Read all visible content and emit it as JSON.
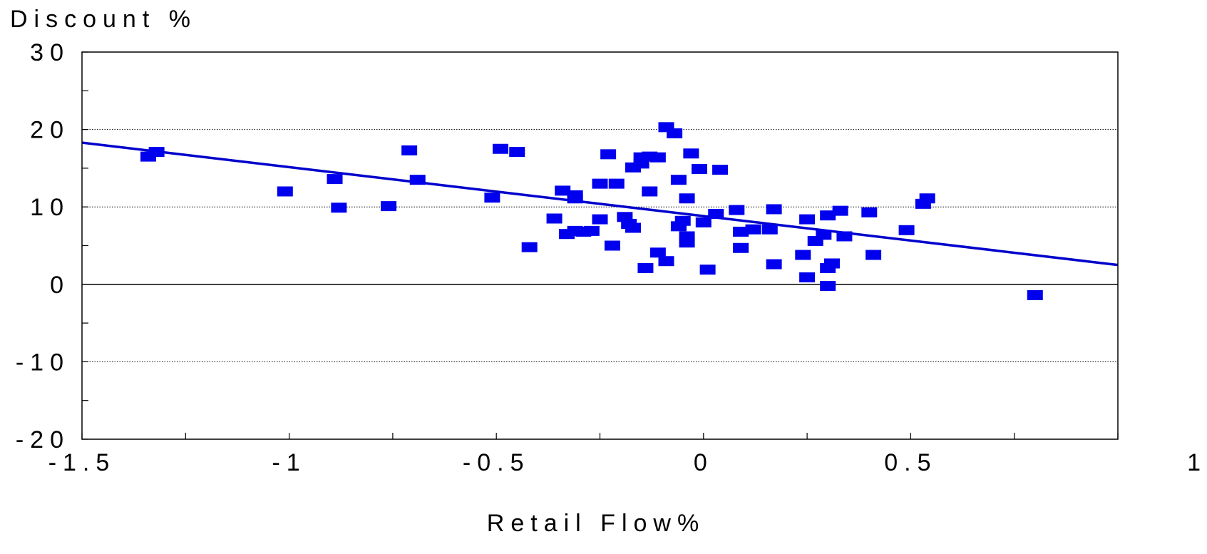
{
  "chart_data": {
    "type": "scatter",
    "ylabel": "Discount %",
    "xlabel": "Retail Flow%",
    "xlim": [
      -1.5,
      1
    ],
    "ylim": [
      -20,
      30
    ],
    "x_ticks": [
      -1.5,
      -1,
      -0.5,
      0,
      0.5,
      1
    ],
    "x_tick_labels": [
      "-1.5",
      "-1",
      "-0.5",
      "0",
      "0.5",
      "1"
    ],
    "y_ticks": [
      -20,
      -10,
      0,
      10,
      20,
      30
    ],
    "y_tick_labels": [
      "-20",
      "-10",
      "0",
      "10",
      "20",
      "30"
    ],
    "grid": "horizontal dotted at -10, 10, 20",
    "marker_color": "#0000ee",
    "trendline": {
      "x": [
        -1.5,
        1
      ],
      "y": [
        18.3,
        2.5
      ],
      "color": "#0000cc"
    },
    "points": [
      {
        "x": -1.34,
        "y": 16.5
      },
      {
        "x": -1.32,
        "y": 17.1
      },
      {
        "x": -1.01,
        "y": 12.0
      },
      {
        "x": -0.89,
        "y": 13.6
      },
      {
        "x": -0.88,
        "y": 9.9
      },
      {
        "x": -0.76,
        "y": 10.1
      },
      {
        "x": -0.71,
        "y": 17.3
      },
      {
        "x": -0.69,
        "y": 13.5
      },
      {
        "x": -0.51,
        "y": 11.2
      },
      {
        "x": -0.49,
        "y": 17.5
      },
      {
        "x": -0.45,
        "y": 17.1
      },
      {
        "x": -0.42,
        "y": 4.8
      },
      {
        "x": -0.36,
        "y": 8.5
      },
      {
        "x": -0.34,
        "y": 12.1
      },
      {
        "x": -0.33,
        "y": 6.5
      },
      {
        "x": -0.31,
        "y": 11.5
      },
      {
        "x": -0.31,
        "y": 11.1
      },
      {
        "x": -0.31,
        "y": 6.9
      },
      {
        "x": -0.29,
        "y": 6.8
      },
      {
        "x": -0.27,
        "y": 6.9
      },
      {
        "x": -0.25,
        "y": 13.0
      },
      {
        "x": -0.25,
        "y": 8.4
      },
      {
        "x": -0.23,
        "y": 16.8
      },
      {
        "x": -0.22,
        "y": 5.0
      },
      {
        "x": -0.21,
        "y": 13.0
      },
      {
        "x": -0.19,
        "y": 8.7
      },
      {
        "x": -0.18,
        "y": 7.8
      },
      {
        "x": -0.17,
        "y": 15.1
      },
      {
        "x": -0.17,
        "y": 7.3
      },
      {
        "x": -0.15,
        "y": 15.6
      },
      {
        "x": -0.15,
        "y": 16.4
      },
      {
        "x": -0.14,
        "y": 2.1
      },
      {
        "x": -0.13,
        "y": 16.5
      },
      {
        "x": -0.13,
        "y": 12.0
      },
      {
        "x": -0.11,
        "y": 16.4
      },
      {
        "x": -0.11,
        "y": 4.1
      },
      {
        "x": -0.09,
        "y": 20.3
      },
      {
        "x": -0.09,
        "y": 3.0
      },
      {
        "x": -0.07,
        "y": 19.5
      },
      {
        "x": -0.06,
        "y": 7.5
      },
      {
        "x": -0.06,
        "y": 13.5
      },
      {
        "x": -0.05,
        "y": 8.2
      },
      {
        "x": -0.04,
        "y": 11.1
      },
      {
        "x": -0.04,
        "y": 5.4
      },
      {
        "x": -0.04,
        "y": 6.2
      },
      {
        "x": -0.03,
        "y": 16.9
      },
      {
        "x": -0.01,
        "y": 14.9
      },
      {
        "x": 0.0,
        "y": 8.0
      },
      {
        "x": 0.01,
        "y": 1.9
      },
      {
        "x": 0.03,
        "y": 9.1
      },
      {
        "x": 0.04,
        "y": 14.8
      },
      {
        "x": 0.08,
        "y": 9.6
      },
      {
        "x": 0.09,
        "y": 6.8
      },
      {
        "x": 0.09,
        "y": 4.7
      },
      {
        "x": 0.12,
        "y": 7.1
      },
      {
        "x": 0.16,
        "y": 7.1
      },
      {
        "x": 0.17,
        "y": 2.6
      },
      {
        "x": 0.17,
        "y": 9.7
      },
      {
        "x": 0.24,
        "y": 3.8
      },
      {
        "x": 0.25,
        "y": 0.9
      },
      {
        "x": 0.25,
        "y": 8.4
      },
      {
        "x": 0.27,
        "y": 5.6
      },
      {
        "x": 0.29,
        "y": 6.4
      },
      {
        "x": 0.3,
        "y": 2.1
      },
      {
        "x": 0.3,
        "y": -0.2
      },
      {
        "x": 0.3,
        "y": 8.9
      },
      {
        "x": 0.31,
        "y": 2.7
      },
      {
        "x": 0.33,
        "y": 9.5
      },
      {
        "x": 0.34,
        "y": 6.2
      },
      {
        "x": 0.4,
        "y": 9.3
      },
      {
        "x": 0.41,
        "y": 3.8
      },
      {
        "x": 0.49,
        "y": 7.0
      },
      {
        "x": 0.53,
        "y": 10.4
      },
      {
        "x": 0.54,
        "y": 11.1
      },
      {
        "x": 0.8,
        "y": -1.4
      }
    ]
  }
}
